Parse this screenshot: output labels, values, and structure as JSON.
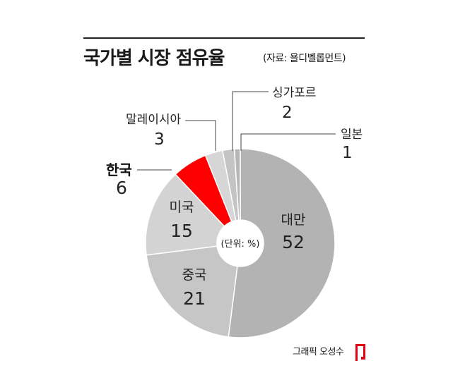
{
  "header": {
    "title": "국가별 시장 점유율",
    "source": "(자료: 욜디벨롭먼트)"
  },
  "chart_data": {
    "type": "pie",
    "title": "국가별 시장 점유율",
    "unit_note": "(단위: %)",
    "slices": [
      {
        "label": "대만",
        "value": 52,
        "color": "#b3b3b3"
      },
      {
        "label": "중국",
        "value": 21,
        "color": "#c6c6c6"
      },
      {
        "label": "미국",
        "value": 15,
        "color": "#d3d3d3"
      },
      {
        "label": "한국",
        "value": 6,
        "color": "#ff0000"
      },
      {
        "label": "말레이시아",
        "value": 3,
        "color": "#d6d6d6"
      },
      {
        "label": "싱가포르",
        "value": 2,
        "color": "#c4c4c4"
      },
      {
        "label": "일본",
        "value": 1,
        "color": "#b7b7b7"
      }
    ]
  },
  "footer": {
    "credit": "그래픽 오성수",
    "logo_color": "#e60012"
  }
}
